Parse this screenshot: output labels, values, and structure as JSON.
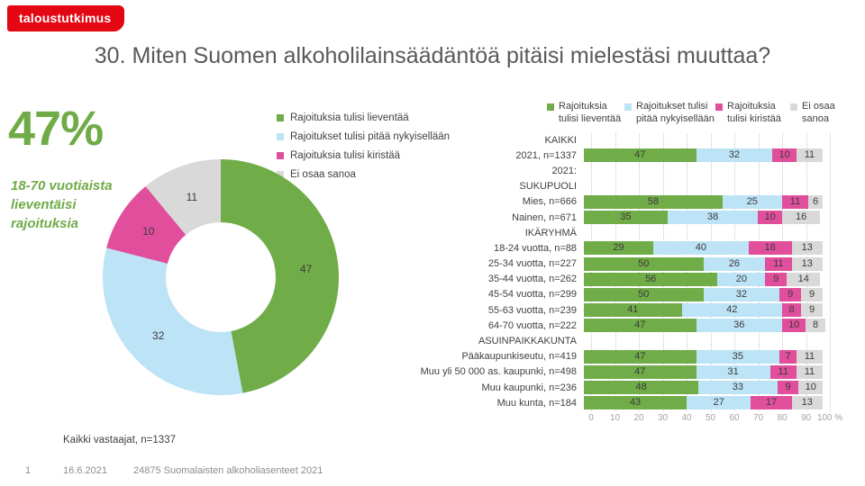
{
  "logo": {
    "text": "taloustutkimus"
  },
  "page_title": "30. Miten Suomen alkoholilainsäädäntöä pitäisi mielestäsi muuttaa?",
  "highlight": {
    "value": "47%",
    "caption": "18-70 vuotiaista lieventäisi rajoituksia"
  },
  "footnote": "Kaikki vastaajat, n=1337",
  "footer": {
    "page_number": "1",
    "date": "16.6.2021",
    "project": "24875 Suomalaisten alkoholiasenteet 2021"
  },
  "colors": {
    "brand_red": "#E30613",
    "green": "#70AC47",
    "light_blue": "#BDE3F6",
    "pink": "#E14E9C",
    "gray": "#D9D9D9",
    "highlight_green": "#6FAB47"
  },
  "chart_data": [
    {
      "type": "pie",
      "subtype": "donut",
      "labels": [
        "Rajoituksia tulisi lieventää",
        "Rajoitukset tulisi pitää nykyisellään",
        "Rajoituksia tulisi kiristää",
        "Ei osaa sanoa"
      ],
      "values": [
        47,
        32,
        10,
        11
      ],
      "colors": [
        "#70AC47",
        "#BDE3F6",
        "#E14E9C",
        "#D9D9D9"
      ],
      "legend_position": "right",
      "start_angle": "top",
      "direction": "clockwise"
    },
    {
      "type": "bar",
      "orientation": "horizontal",
      "stacked": true,
      "series_names": [
        "Rajoituksia tulisi lieventää",
        "Rajoitukset tulisi pitää nykyisellään",
        "Rajoituksia tulisi kiristää",
        "Ei osaa sanoa"
      ],
      "legend": [
        [
          "Rajoituksia",
          "tulisi lieventää"
        ],
        [
          "Rajoitukset tulisi",
          "pitää nykyisellään"
        ],
        [
          "Rajoituksia",
          "tulisi kiristää"
        ],
        [
          "Ei osaa",
          "sanoa"
        ]
      ],
      "colors": [
        "#70AC47",
        "#BDE3F6",
        "#E14E9C",
        "#D9D9D9"
      ],
      "xlim": [
        0,
        100
      ],
      "x_ticks": [
        0,
        10,
        20,
        30,
        40,
        50,
        60,
        70,
        80,
        90,
        100
      ],
      "x_suffix": "%",
      "grid": true,
      "legend_position": "top",
      "rows": [
        {
          "label": "KAIKKI"
        },
        {
          "label": "2021, n=1337",
          "values": [
            47,
            32,
            10,
            11
          ]
        },
        {
          "label": "2021:"
        },
        {
          "label": "SUKUPUOLI"
        },
        {
          "label": "Mies, n=666",
          "values": [
            58,
            25,
            11,
            6
          ]
        },
        {
          "label": "Nainen, n=671",
          "values": [
            35,
            38,
            10,
            16
          ]
        },
        {
          "label": "IKÄRYHMÄ"
        },
        {
          "label": "18-24 vuotta, n=88",
          "values": [
            29,
            40,
            18,
            13
          ]
        },
        {
          "label": "25-34 vuotta, n=227",
          "values": [
            50,
            26,
            11,
            13
          ]
        },
        {
          "label": "35-44 vuotta, n=262",
          "values": [
            56,
            20,
            9,
            14
          ]
        },
        {
          "label": "45-54 vuotta, n=299",
          "values": [
            50,
            32,
            9,
            9
          ]
        },
        {
          "label": "55-63 vuotta, n=239",
          "values": [
            41,
            42,
            8,
            9
          ]
        },
        {
          "label": "64-70 vuotta, n=222",
          "values": [
            47,
            36,
            10,
            8
          ]
        },
        {
          "label": "ASUINPAIKKAKUNTA"
        },
        {
          "label": "Pääkaupunkiseutu, n=419",
          "values": [
            47,
            35,
            7,
            11
          ]
        },
        {
          "label": "Muu yli 50 000 as. kaupunki, n=498",
          "values": [
            47,
            31,
            11,
            11
          ]
        },
        {
          "label": "Muu kaupunki, n=236",
          "values": [
            48,
            33,
            9,
            10
          ]
        },
        {
          "label": "Muu kunta, n=184",
          "values": [
            43,
            27,
            17,
            13
          ]
        }
      ]
    }
  ]
}
